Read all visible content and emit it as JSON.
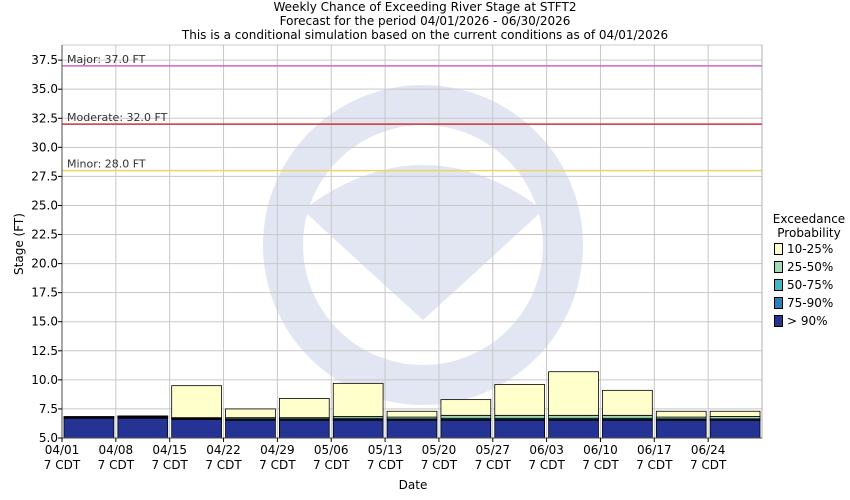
{
  "chart_data": {
    "type": "bar",
    "stacked": true,
    "title": [
      "Weekly Chance of Exceeding River Stage at STFT2",
      "Forecast for the period 04/01/2026 - 06/30/2026",
      "This is a conditional simulation based on the current conditions as of 04/01/2026"
    ],
    "xlabel": "Date",
    "ylabel": "Stage (FT)",
    "ylim": [
      5.0,
      38.8
    ],
    "yticks": [
      "5.0",
      "7.5",
      "10.0",
      "12.5",
      "15.0",
      "17.5",
      "20.0",
      "22.5",
      "25.0",
      "27.5",
      "30.0",
      "32.5",
      "35.0",
      "37.5"
    ],
    "categories": [
      "04/01",
      "04/08",
      "04/15",
      "04/22",
      "04/29",
      "05/06",
      "05/13",
      "05/20",
      "05/27",
      "06/03",
      "06/10",
      "06/17",
      "06/24"
    ],
    "tick_sublabel": "7 CDT",
    "legend": {
      "title": [
        "Exceedance",
        "Probability"
      ],
      "placement": "right",
      "items": [
        {
          "label": "10-25%",
          "color": "#ffffcc"
        },
        {
          "label": "25-50%",
          "color": "#a1dab4"
        },
        {
          "label": "50-75%",
          "color": "#41b6c4"
        },
        {
          "label": "75-90%",
          "color": "#2c7fb8"
        },
        {
          "label": "> 90%",
          "color": "#253494"
        }
      ]
    },
    "series_levels": [
      {
        "name": "> 90%",
        "values": [
          6.7,
          6.7,
          6.6,
          6.5,
          6.5,
          6.5,
          6.5,
          6.5,
          6.5,
          6.5,
          6.5,
          6.5,
          6.5
        ]
      },
      {
        "name": "75-90%",
        "values": [
          6.75,
          6.75,
          6.65,
          6.6,
          6.6,
          6.6,
          6.6,
          6.6,
          6.6,
          6.6,
          6.6,
          6.6,
          6.6
        ]
      },
      {
        "name": "50-75%",
        "values": [
          6.78,
          6.8,
          6.7,
          6.65,
          6.65,
          6.7,
          6.65,
          6.7,
          6.7,
          6.7,
          6.7,
          6.65,
          6.65
        ]
      },
      {
        "name": "25-50%",
        "values": [
          6.8,
          6.85,
          6.75,
          6.75,
          6.75,
          6.85,
          6.8,
          6.95,
          6.95,
          6.95,
          6.95,
          6.8,
          6.85
        ]
      },
      {
        "name": "10-25%",
        "values": [
          6.85,
          6.9,
          9.5,
          7.5,
          8.4,
          9.7,
          7.3,
          8.3,
          9.6,
          10.7,
          9.1,
          7.3,
          7.3
        ]
      }
    ],
    "thresholds": [
      {
        "label": "Major: 37.0 FT",
        "value": 37.0,
        "color": "#cc66cc"
      },
      {
        "label": "Moderate: 32.0 FT",
        "value": 32.0,
        "color": "#cc3333"
      },
      {
        "label": "Minor: 28.0 FT",
        "value": 28.0,
        "color": "#e8d866"
      }
    ],
    "grid": true
  }
}
